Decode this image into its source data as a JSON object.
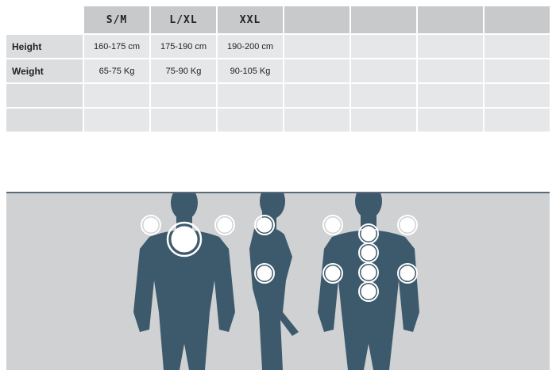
{
  "size_table": {
    "headers": [
      "S/M",
      "L/XL",
      "XXL",
      "",
      "",
      "",
      "",
      ""
    ],
    "rows": [
      {
        "label": "Height",
        "values": [
          "160-175 cm",
          "175-190 cm",
          "190-200 cm",
          "",
          "",
          "",
          ""
        ]
      },
      {
        "label": "Weight",
        "values": [
          "65-75 Kg",
          "75-90 Kg",
          "90-105 Kg",
          "",
          "",
          "",
          ""
        ]
      },
      {
        "label": "",
        "values": [
          "",
          "",
          "",
          "",
          "",
          "",
          ""
        ]
      },
      {
        "label": "",
        "values": [
          "",
          "",
          "",
          "",
          "",
          "",
          ""
        ]
      }
    ]
  },
  "figure": {
    "body_color": "#3d5a6c",
    "background": "#d0d1d3",
    "marker_color": "#ffffff",
    "views": [
      "front",
      "side",
      "back"
    ]
  }
}
